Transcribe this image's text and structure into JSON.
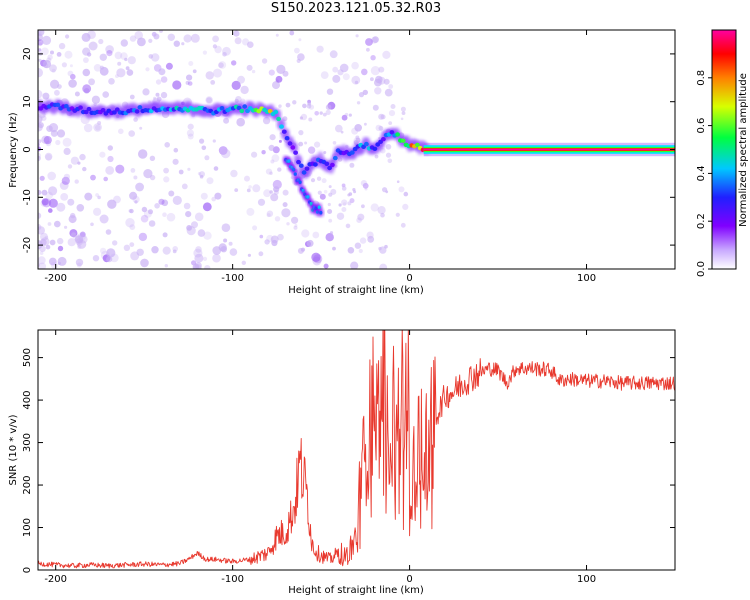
{
  "title": "S150.2023.121.05.32.R03",
  "colors": {
    "snr_line": "#e8392e",
    "ridge_low": "#7a00ff",
    "scatter": "#c9b0f5"
  },
  "colorbar": {
    "label": "Normalized spectral amplitude",
    "range": [
      0,
      1
    ],
    "ticks": [
      "0.0",
      "0.2",
      "0.4",
      "0.6",
      "0.8"
    ],
    "tick_values": [
      0.0,
      0.2,
      0.4,
      0.6,
      0.8
    ],
    "colormap": "rainbow (white-violet-blue-cyan-green-yellow-red-magenta)"
  },
  "chart_data": [
    {
      "type": "heatmap",
      "title": "",
      "xlabel": "Height of straight line (km)",
      "ylabel": "Frequency (Hz)",
      "xlim": [
        -210,
        150
      ],
      "ylim": [
        -25,
        25
      ],
      "x_ticks": [
        "-200",
        "-100",
        "0",
        "100"
      ],
      "x_tick_values": [
        -200,
        -100,
        0,
        100
      ],
      "y_ticks": [
        "-20",
        "-10",
        "0",
        "10",
        "20"
      ],
      "y_tick_values": [
        -20,
        -10,
        0,
        10,
        20
      ],
      "ridge": {
        "description": "dominant spectral ridge (frequency vs height)",
        "x": [
          -210,
          -200,
          -190,
          -180,
          -170,
          -160,
          -150,
          -140,
          -130,
          -120,
          -110,
          -100,
          -90,
          -80,
          -75,
          -70,
          -65,
          -60,
          -55,
          -50,
          -45,
          -40,
          -35,
          -30,
          -25,
          -20,
          -15,
          -10,
          -5,
          0,
          5,
          10,
          20,
          40,
          60,
          80,
          100,
          120,
          150
        ],
        "y": [
          9,
          9,
          8.5,
          8,
          8,
          8,
          8.5,
          8.5,
          8.5,
          8.5,
          8,
          8.5,
          8.5,
          8,
          7.5,
          3,
          0,
          -5,
          -3,
          -2,
          -4,
          0,
          -1,
          0,
          1,
          0,
          2,
          4,
          2,
          1,
          0.5,
          0,
          0,
          0,
          0,
          0,
          0,
          0,
          0
        ],
        "amplitude": [
          0.3,
          0.35,
          0.3,
          0.3,
          0.3,
          0.35,
          0.4,
          0.4,
          0.45,
          0.45,
          0.4,
          0.45,
          0.5,
          0.75,
          0.5,
          0.3,
          0.3,
          0.3,
          0.3,
          0.35,
          0.3,
          0.35,
          0.3,
          0.35,
          0.5,
          0.4,
          0.35,
          0.4,
          0.55,
          0.75,
          0.9,
          1.0,
          1.0,
          1.0,
          1.0,
          1.0,
          1.0,
          1.0,
          1.0
        ]
      },
      "branch": {
        "description": "secondary descending branch",
        "x": [
          -70,
          -65,
          -60,
          -55,
          -50
        ],
        "y": [
          -2,
          -5,
          -9,
          -12,
          -13
        ]
      }
    },
    {
      "type": "line",
      "title": "",
      "xlabel": "Height of straight line (km)",
      "ylabel": "SNR (10 * v/v)",
      "xlim": [
        -210,
        150
      ],
      "ylim": [
        0,
        565
      ],
      "x_ticks": [
        "-200",
        "-100",
        "0",
        "100"
      ],
      "x_tick_values": [
        -200,
        -100,
        0,
        100
      ],
      "y_ticks": [
        "0",
        "100",
        "200",
        "300",
        "400",
        "500"
      ],
      "y_tick_values": [
        0,
        100,
        200,
        300,
        400,
        500
      ],
      "x": [
        -210,
        -200,
        -190,
        -180,
        -170,
        -160,
        -150,
        -140,
        -130,
        -125,
        -120,
        -115,
        -110,
        -100,
        -90,
        -80,
        -75,
        -70,
        -65,
        -62,
        -58,
        -55,
        -52,
        -48,
        -45,
        -40,
        -35,
        -30,
        -28,
        -25,
        -22,
        -20,
        -18,
        -15,
        -13,
        -10,
        -8,
        -5,
        -3,
        -1,
        0,
        3,
        5,
        8,
        10,
        15,
        20,
        25,
        30,
        35,
        40,
        45,
        50,
        55,
        60,
        70,
        80,
        85,
        90,
        100,
        110,
        120,
        130,
        140,
        150
      ],
      "values": [
        15,
        12,
        10,
        12,
        10,
        12,
        14,
        12,
        15,
        25,
        40,
        25,
        25,
        20,
        25,
        40,
        80,
        90,
        150,
        250,
        180,
        60,
        40,
        30,
        25,
        40,
        35,
        80,
        200,
        280,
        350,
        450,
        330,
        560,
        300,
        420,
        300,
        480,
        250,
        560,
        130,
        260,
        300,
        320,
        300,
        360,
        410,
        420,
        440,
        455,
        465,
        475,
        470,
        440,
        475,
        475,
        470,
        445,
        450,
        445,
        445,
        440,
        440,
        440,
        440
      ]
    }
  ]
}
